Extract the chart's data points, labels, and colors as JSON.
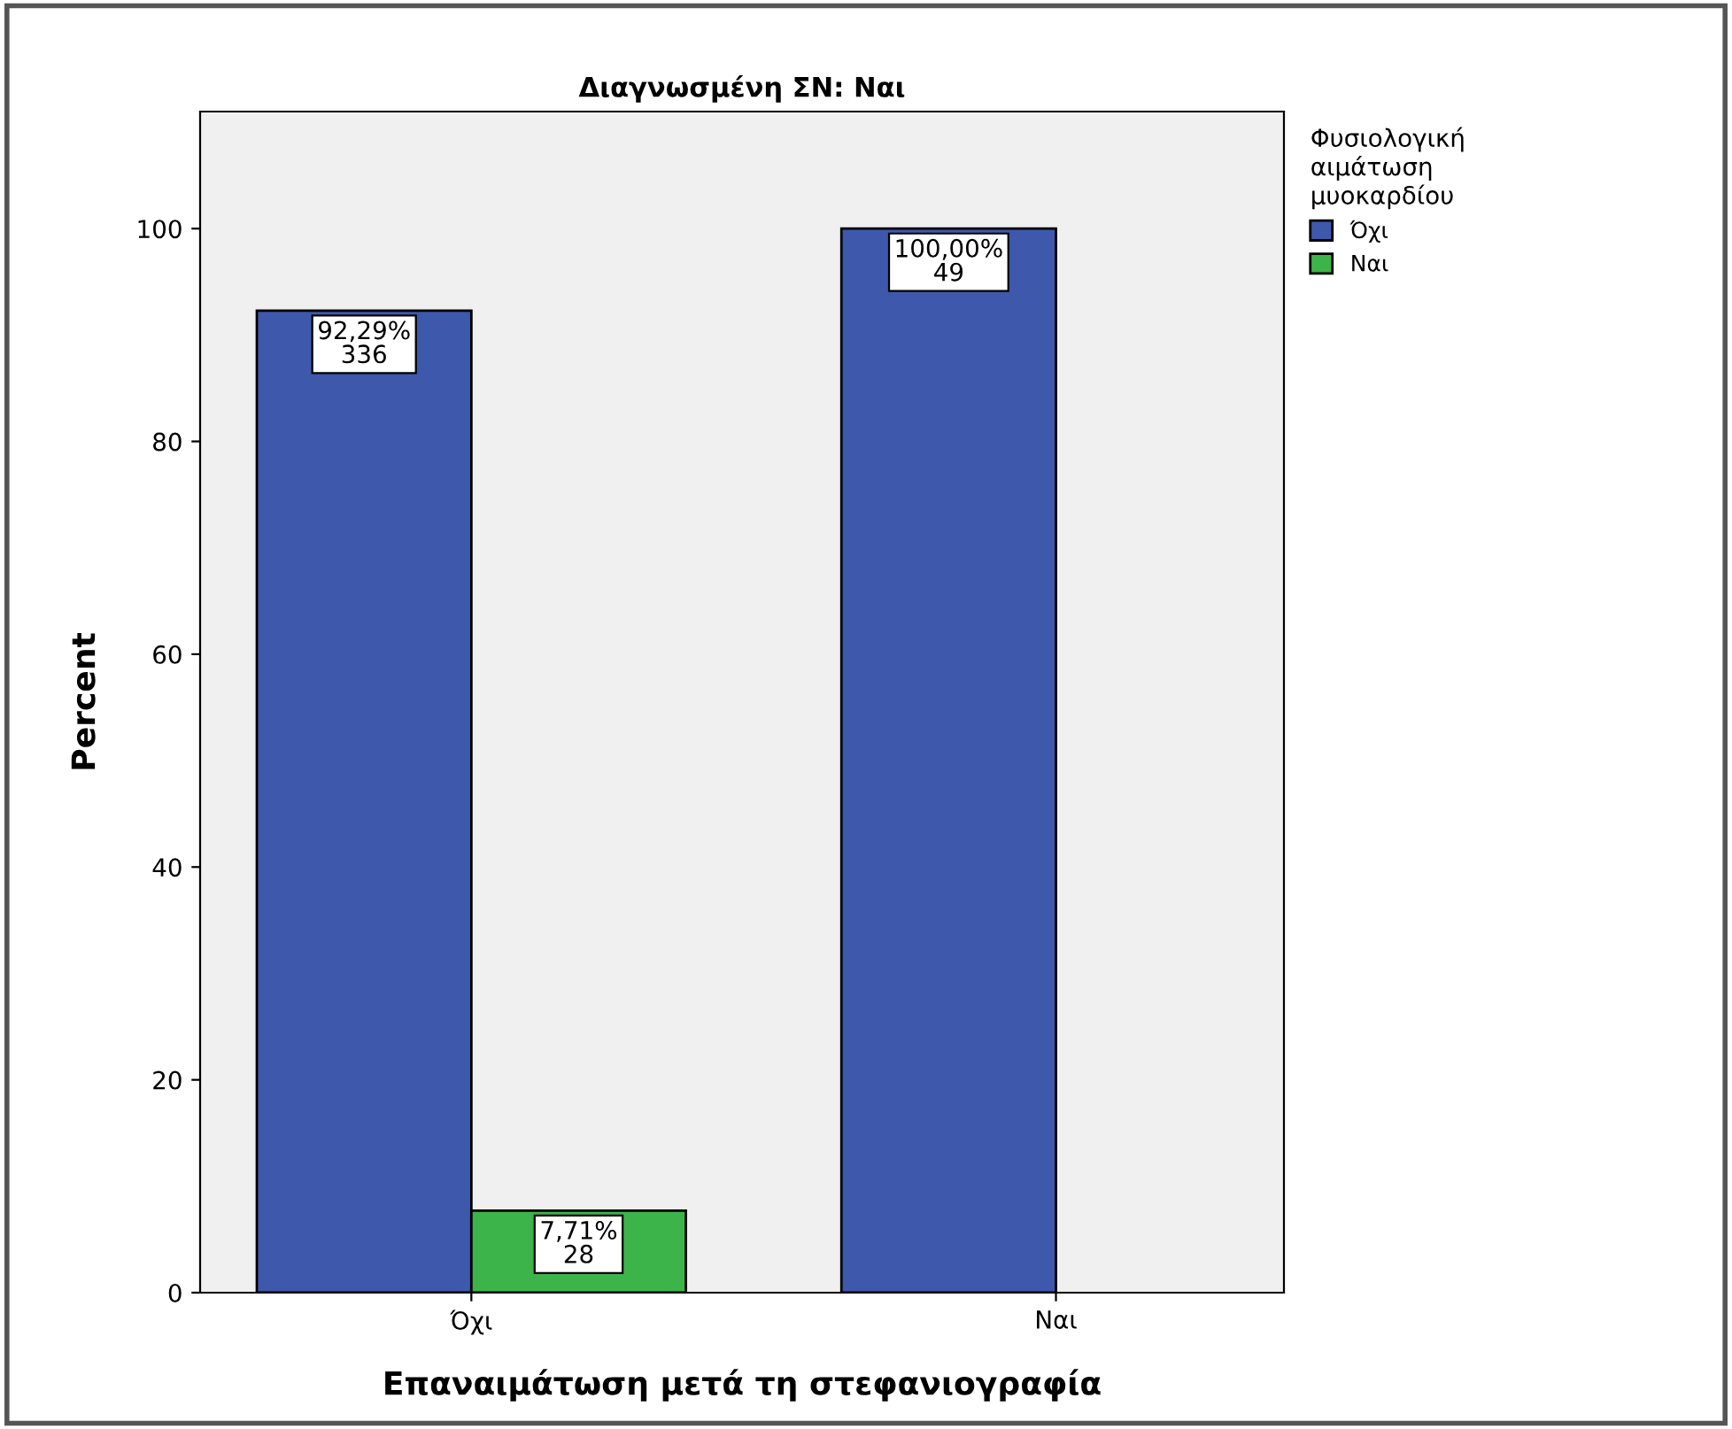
{
  "chart_data": {
    "type": "bar",
    "title": "Διαγνωσμένη ΣΝ: Ναι",
    "xlabel": "Επαναιμάτωση μετά τη στεφανιογραφία",
    "ylabel": "Percent",
    "legend_title": "Φυσιολογική\nαιμάτωση\nμυοκαρδίου",
    "categories": [
      "Όχι",
      "Ναι"
    ],
    "series": [
      {
        "name": "Όχι",
        "color": "#3e58ac",
        "values": [
          92.29,
          100
        ],
        "value_labels": [
          "92,29%\n336",
          "100,00%\n49"
        ]
      },
      {
        "name": "Ναι",
        "color": "#3cb44a",
        "values": [
          7.71,
          null
        ],
        "value_labels": [
          "7,71%\n28",
          null
        ]
      }
    ],
    "ylim": [
      0,
      111
    ],
    "yticks": [
      0,
      20,
      40,
      60,
      80,
      100
    ],
    "grid": false,
    "legend": "top right"
  }
}
